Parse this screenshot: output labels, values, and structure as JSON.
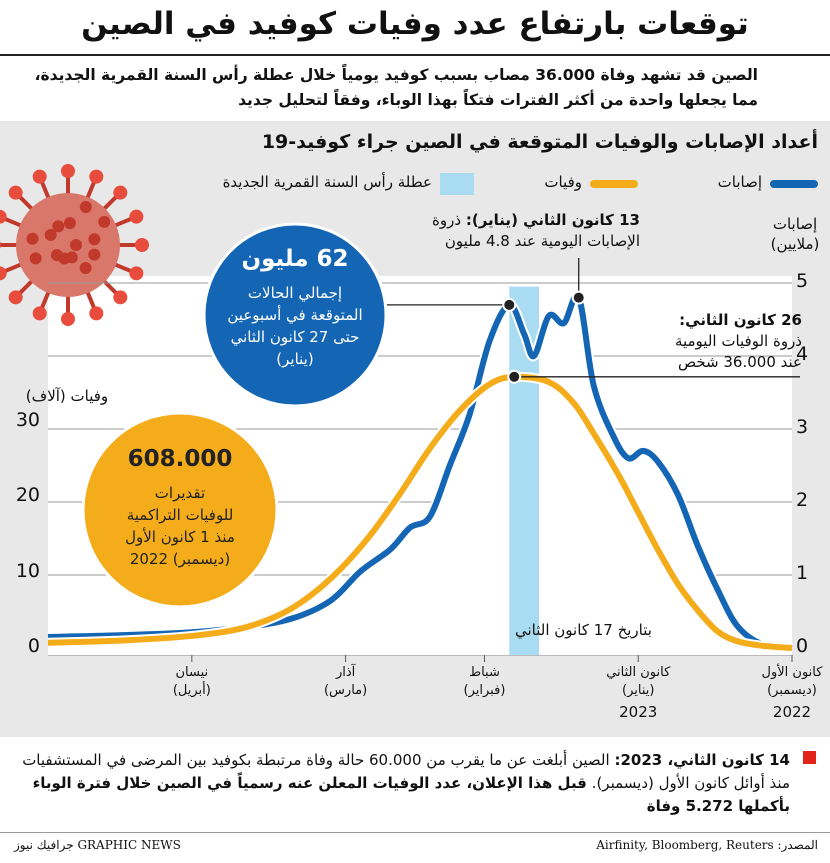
{
  "header": {
    "title": "توقعات بارتفاع عدد وفيات كوفيد في الصين",
    "subtitle_line1": "الصين قد تشهد وفاة 36.000 مصاب بسبب كوفيد يومياً خلال عطلة رأس السنة القمرية الجديدة،",
    "subtitle_line2": "مما يجعلها واحدة من أكثر الفترات فتكاً بهذا الوباء، وفقاً لتحليل جديد"
  },
  "colors": {
    "infections": "#1466b5",
    "deaths": "#f5ac1b",
    "holiday": "#a9dcf3",
    "panel": "#e8e8e8",
    "bubble_blue": "#1466b5",
    "bubble_yellow": "#f5ac1b",
    "accent_red": "#e2231a"
  },
  "icons": [
    "coronavirus-illustration-icon"
  ],
  "chart_data": {
    "type": "line",
    "title": "أعداد الإصابات والوفيات المتوقعة في الصين جراء كوفيد-19",
    "legend": {
      "infections": "إصابات",
      "deaths": "وفيات",
      "holiday": "عطلة رأس السنة القمرية الجديدة"
    },
    "right_axis": {
      "label_line1": "إصابات",
      "label_line2": "(ملايين)",
      "range": [
        0,
        5
      ],
      "ticks": [
        "0",
        "1",
        "2",
        "3",
        "4",
        "5"
      ]
    },
    "left_axis": {
      "label": "وفيات (آلاف)",
      "range": [
        0,
        40
      ],
      "ticks": [
        "0",
        "10",
        "20",
        "30"
      ]
    },
    "x_range": [
      "2022-12-01",
      "2023-04-30"
    ],
    "x_ticks": [
      {
        "date": "2022-12-01",
        "line1": "كانون الأول",
        "line2": "(ديسمبر)",
        "year": "2022"
      },
      {
        "date": "2023-01-01",
        "line1": "كانون الثاني",
        "line2": "(يناير)",
        "year": "2023"
      },
      {
        "date": "2023-02-01",
        "line1": "شباط",
        "line2": "(فبراير)",
        "year": ""
      },
      {
        "date": "2023-03-01",
        "line1": "آذار",
        "line2": "(مارس)",
        "year": ""
      },
      {
        "date": "2023-04-01",
        "line1": "نيسان",
        "line2": "(أبريل)",
        "year": ""
      }
    ],
    "holiday_range": [
      "2023-01-21",
      "2023-01-27"
    ],
    "series": [
      {
        "name": "إصابات",
        "unit": "million",
        "points": [
          [
            "2022-12-01",
            0.0
          ],
          [
            "2022-12-07",
            0.05
          ],
          [
            "2022-12-12",
            0.3
          ],
          [
            "2022-12-16",
            0.8
          ],
          [
            "2022-12-20",
            1.4
          ],
          [
            "2022-12-24",
            2.1
          ],
          [
            "2022-12-28",
            2.55
          ],
          [
            "2022-12-31",
            2.7
          ],
          [
            "2023-01-03",
            2.6
          ],
          [
            "2023-01-06",
            2.9
          ],
          [
            "2023-01-10",
            3.6
          ],
          [
            "2023-01-13",
            4.8
          ],
          [
            "2023-01-16",
            4.45
          ],
          [
            "2023-01-19",
            4.55
          ],
          [
            "2023-01-22",
            4.0
          ],
          [
            "2023-01-24",
            4.3
          ],
          [
            "2023-01-27",
            4.7
          ],
          [
            "2023-01-31",
            4.2
          ],
          [
            "2023-02-04",
            3.2
          ],
          [
            "2023-02-08",
            2.5
          ],
          [
            "2023-02-12",
            1.8
          ],
          [
            "2023-02-16",
            1.65
          ],
          [
            "2023-02-20",
            1.35
          ],
          [
            "2023-02-26",
            1.05
          ],
          [
            "2023-03-04",
            0.65
          ],
          [
            "2023-03-12",
            0.4
          ],
          [
            "2023-03-22",
            0.28
          ],
          [
            "2023-04-05",
            0.2
          ],
          [
            "2023-04-30",
            0.15
          ]
        ]
      },
      {
        "name": "وفيات",
        "unit": "thousand",
        "points": [
          [
            "2022-12-01",
            0.0
          ],
          [
            "2022-12-07",
            0.3
          ],
          [
            "2022-12-12",
            0.9
          ],
          [
            "2022-12-16",
            2.2
          ],
          [
            "2022-12-20",
            5.0
          ],
          [
            "2022-12-24",
            8.5
          ],
          [
            "2022-12-28",
            13.0
          ],
          [
            "2023-01-01",
            18.0
          ],
          [
            "2023-01-05",
            23.0
          ],
          [
            "2023-01-10",
            28.5
          ],
          [
            "2023-01-14",
            32.5
          ],
          [
            "2023-01-19",
            35.3
          ],
          [
            "2023-01-26",
            36.0
          ],
          [
            "2023-01-31",
            35.0
          ],
          [
            "2023-02-06",
            31.5
          ],
          [
            "2023-02-12",
            26.5
          ],
          [
            "2023-02-18",
            20.5
          ],
          [
            "2023-02-24",
            15.0
          ],
          [
            "2023-03-02",
            10.5
          ],
          [
            "2023-03-08",
            7.0
          ],
          [
            "2023-03-14",
            4.5
          ],
          [
            "2023-03-22",
            2.6
          ],
          [
            "2023-04-01",
            1.6
          ],
          [
            "2023-04-15",
            1.0
          ],
          [
            "2023-04-30",
            0.7
          ]
        ]
      }
    ],
    "annotations": {
      "peak_infections_title": "13 كانون الثاني (يناير):",
      "peak_infections_word": "ذروة",
      "peak_infections_body": "الإصابات اليومية عند 4.8 مليون",
      "peak_infections_date": "2023-01-13",
      "peak_infections_value": 4.8,
      "peak_deaths_title": "26 كانون الثاني:",
      "peak_deaths_line2": "ذروة الوفيات اليومية",
      "peak_deaths_line3": "عند 36.000 شخص",
      "peak_deaths_date": "2023-01-26",
      "peak_deaths_value": 36.0,
      "estimate_date_note": "بتاريخ 17 كانون الثاني",
      "cases_bubble_value": "62 مليون",
      "cases_bubble_line1": "إجمالي الحالات",
      "cases_bubble_line2": "المتوقعة في أسبوعين",
      "cases_bubble_line3": "حتى 27 كانون الثاني",
      "cases_bubble_line4": "(يناير)",
      "cases_bubble_anchor_date": "2023-01-27",
      "cases_bubble_anchor_value": 4.7,
      "deaths_bubble_value": "608.000",
      "deaths_bubble_line1": "تقديرات",
      "deaths_bubble_line2": "للوفيات التراكمية",
      "deaths_bubble_line3": "منذ 1 كانون الأول",
      "deaths_bubble_line4": "(ديسمبر) 2022"
    }
  },
  "footnote": {
    "date_bold": "14 كانون الثاني، 2023:",
    "text1": "الصين أبلغت عن ما يقرب من 60.000 حالة وفاة مرتبطة بكوفيد بين المرضى",
    "text2": "في المستشفيات منذ أوائل كانون الأول (ديسمبر).",
    "bold_tail": "قبل هذا الإعلان، عدد الوفيات المعلن عنه رسمياً في الصين خلال فترة الوباء بأكملها 5.272 وفاة"
  },
  "source": "المصدر: Airfinity, Bloomberg, Reuters",
  "brand": "GRAPHIC NEWS جرافيك نيوز"
}
